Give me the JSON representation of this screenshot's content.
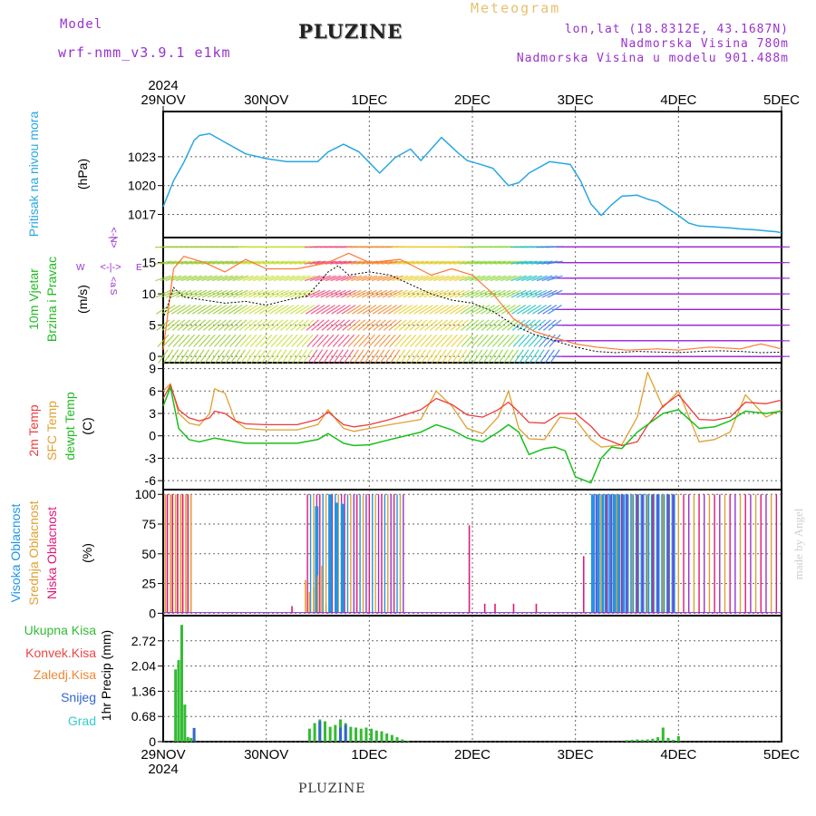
{
  "header": {
    "model_label": "Model",
    "model_name": "wrf-nmm_v3.9.1 e1km",
    "station": "PLUZINE",
    "meteogram": "Meteogram",
    "lonlat": "lon,lat (18.8312E, 43.1687N)",
    "altitude": "Nadmorska Visina 780m",
    "model_altitude": "Nadmorska Visina u modelu 901.488m",
    "watermark": "made by Angel",
    "footer_station": "PLUZINE"
  },
  "colors": {
    "pressure": "#2aa7e0",
    "temp2m": "#ee3b3b",
    "sfc": "#e0a030",
    "dew": "#18c018",
    "high": "#1e96e6",
    "mid": "#e0a030",
    "low": "#e0187a",
    "purple": "#9933cc",
    "precip": "#33bb33",
    "snow": "#3366cc",
    "conv": "#ee4444",
    "frz": "#ee8833",
    "grad": "#33cccc"
  },
  "chart_data": [
    {
      "id": "pressure",
      "type": "line",
      "title": "",
      "ylabel": "Pritisak na nivou mora",
      "unit": "(hPa)",
      "ylim": [
        1014.6,
        1027.7
      ],
      "yticks": [
        1017,
        1020,
        1023
      ],
      "x_ticks_top": [
        "29NOV",
        "30NOV",
        "1DEC",
        "2DEC",
        "3DEC",
        "4DEC",
        "5DEC"
      ],
      "x_year_top": "2024",
      "series": [
        {
          "name": "mslp",
          "x": [
            0,
            0.1,
            0.2,
            0.3,
            0.35,
            0.45,
            0.6,
            0.7,
            0.8,
            1.0,
            1.2,
            1.5,
            1.6,
            1.75,
            1.9,
            2.0,
            2.1,
            2.25,
            2.4,
            2.5,
            2.7,
            2.85,
            2.95,
            3.05,
            3.2,
            3.35,
            3.45,
            3.55,
            3.75,
            3.95,
            4.05,
            4.15,
            4.25,
            4.35,
            4.45,
            4.6,
            4.7,
            4.8,
            4.9,
            5.0,
            5.1,
            5.2,
            5.35,
            5.5,
            5.6,
            5.75,
            5.85,
            5.95,
            6.0
          ],
          "values": [
            1017.8,
            1020.5,
            1022.4,
            1024.7,
            1025.2,
            1025.4,
            1024.5,
            1023.9,
            1023.3,
            1022.8,
            1022.5,
            1022.5,
            1023.5,
            1024.3,
            1023.5,
            1022.4,
            1021.3,
            1022.9,
            1023.8,
            1022.6,
            1025.0,
            1023.5,
            1022.6,
            1022.3,
            1021.8,
            1020.0,
            1020.3,
            1021.3,
            1022.5,
            1022.2,
            1020.5,
            1018.1,
            1016.9,
            1018.0,
            1018.9,
            1019.0,
            1018.6,
            1018.3,
            1017.6,
            1016.9,
            1016.1,
            1015.8,
            1015.7,
            1015.6,
            1015.5,
            1015.4,
            1015.3,
            1015.2,
            1015.1
          ]
        }
      ]
    },
    {
      "id": "wind",
      "type": "line",
      "title": "",
      "ylabel": "10m Vjetar Brzina i Pravac",
      "ylabel_line1": "10m Vjetar",
      "ylabel_line2": "Brzina i Pravac",
      "unit": "(m/s)",
      "compass": {
        "n": "N",
        "arrow": "<-|->",
        "w": "W",
        "e": "E",
        "s": "S",
        "a_label": "a",
        "lt": "<"
      },
      "ylim": [
        -1,
        19
      ],
      "yticks": [
        0,
        5,
        10,
        15
      ],
      "series": [
        {
          "name": "speed",
          "x": [
            0,
            0.1,
            0.2,
            0.4,
            0.6,
            0.8,
            1.0,
            1.2,
            1.4,
            1.5,
            1.6,
            1.7,
            1.8,
            2.0,
            2.2,
            2.4,
            2.6,
            2.8,
            3.0,
            3.2,
            3.4,
            3.6,
            3.8,
            4.0,
            4.2,
            4.4,
            4.6,
            4.8,
            5.0,
            5.2,
            5.4,
            5.6,
            5.8,
            6.0
          ],
          "values": [
            6,
            11,
            9.5,
            9.0,
            8.5,
            8.8,
            8.2,
            9.0,
            9.7,
            11.5,
            13.5,
            14.5,
            13.0,
            13.5,
            13.0,
            11.5,
            10.0,
            9.0,
            8.5,
            7.2,
            5.0,
            3.5,
            2.5,
            1.5,
            0.8,
            0.6,
            0.8,
            0.7,
            0.6,
            0.8,
            0.9,
            0.8,
            0.6,
            0.7
          ]
        },
        {
          "name": "gust",
          "x": [
            0,
            0.1,
            0.2,
            0.4,
            0.6,
            0.8,
            1.0,
            1.3,
            1.6,
            1.8,
            2.0,
            2.3,
            2.6,
            2.8,
            3.0,
            3.2,
            3.4,
            3.6,
            3.8,
            4.0,
            4.2,
            4.5,
            4.8,
            5.0,
            5.3,
            5.6,
            5.8,
            6.0
          ],
          "values": [
            1,
            14,
            16,
            15,
            13.5,
            15.5,
            14,
            14,
            15,
            16.5,
            15,
            15.5,
            13,
            14,
            13,
            10,
            6,
            4,
            3,
            2,
            1.5,
            1.0,
            1.2,
            1.0,
            1.5,
            1.2,
            2.0,
            1.2
          ]
        }
      ]
    },
    {
      "id": "temperature",
      "type": "line",
      "title": "",
      "ylabel": "2m Temp SFC Temp dewpt Temp",
      "ylabel_2m": "2m Temp",
      "ylabel_sfc": "SFC Temp",
      "ylabel_dew": "dewpt Temp",
      "unit": "(C)",
      "ylim": [
        -7.2,
        9.8
      ],
      "yticks": [
        -6,
        -3,
        0,
        3,
        6,
        9
      ],
      "series": [
        {
          "name": "2m",
          "x": [
            0,
            0.07,
            0.15,
            0.25,
            0.35,
            0.45,
            0.5,
            0.6,
            0.7,
            0.8,
            1.0,
            1.3,
            1.5,
            1.6,
            1.75,
            1.85,
            2.0,
            2.2,
            2.5,
            2.65,
            2.8,
            2.95,
            3.1,
            3.25,
            3.35,
            3.45,
            3.55,
            3.7,
            3.85,
            4.0,
            4.15,
            4.25,
            4.45,
            4.6,
            4.7,
            4.85,
            5.0,
            5.2,
            5.35,
            5.5,
            5.65,
            5.85,
            6.0
          ],
          "values": [
            5.0,
            6.8,
            3.5,
            2.4,
            2.0,
            2.4,
            3.3,
            3.0,
            2.0,
            1.6,
            1.5,
            1.5,
            2.2,
            3.2,
            1.5,
            1.2,
            1.5,
            2.2,
            3.5,
            5.0,
            4.2,
            2.8,
            2.5,
            3.5,
            4.5,
            3.2,
            1.8,
            1.7,
            3.0,
            3.0,
            1.3,
            -0.2,
            -1.3,
            -0.8,
            1.4,
            4.0,
            5.5,
            2.2,
            2.1,
            2.5,
            4.5,
            4.3,
            4.8
          ]
        },
        {
          "name": "sfc",
          "x": [
            0,
            0.07,
            0.15,
            0.25,
            0.35,
            0.45,
            0.5,
            0.6,
            0.7,
            0.8,
            1.0,
            1.3,
            1.5,
            1.6,
            1.75,
            1.85,
            2.0,
            2.2,
            2.5,
            2.65,
            2.8,
            2.95,
            3.1,
            3.25,
            3.35,
            3.45,
            3.55,
            3.7,
            3.85,
            4.0,
            4.15,
            4.25,
            4.45,
            4.6,
            4.7,
            4.85,
            5.0,
            5.2,
            5.35,
            5.5,
            5.65,
            5.85,
            6.0
          ],
          "values": [
            6.0,
            7.0,
            3.0,
            1.7,
            1.4,
            3.0,
            6.3,
            5.7,
            2.0,
            1.0,
            0.8,
            0.8,
            1.5,
            3.5,
            1.0,
            0.6,
            1.0,
            1.5,
            2.2,
            6.0,
            4.0,
            1.0,
            0.3,
            2.5,
            6.0,
            1.0,
            -0.4,
            -0.5,
            2.5,
            2.2,
            -0.5,
            -1.5,
            -1.2,
            2.5,
            8.5,
            3.8,
            6.0,
            -0.8,
            -0.5,
            0.5,
            5.5,
            2.5,
            3.5
          ]
        },
        {
          "name": "dew",
          "x": [
            0,
            0.07,
            0.15,
            0.25,
            0.35,
            0.5,
            0.7,
            0.8,
            1.0,
            1.3,
            1.5,
            1.6,
            1.75,
            1.85,
            2.0,
            2.2,
            2.5,
            2.65,
            2.8,
            2.95,
            3.1,
            3.25,
            3.35,
            3.45,
            3.55,
            3.7,
            3.8,
            3.9,
            4.0,
            4.15,
            4.25,
            4.35,
            4.45,
            4.6,
            4.75,
            4.85,
            5.0,
            5.2,
            5.35,
            5.5,
            5.65,
            5.85,
            6.0
          ],
          "values": [
            4.0,
            6.5,
            1.0,
            -0.5,
            -0.8,
            -0.3,
            -0.8,
            -1.0,
            -1.0,
            -1.0,
            -0.5,
            0.3,
            -1.0,
            -1.3,
            -1.2,
            -0.5,
            0.5,
            1.5,
            0.8,
            -0.3,
            -0.8,
            0.5,
            1.5,
            0.5,
            -2.5,
            -1.7,
            -1.5,
            -2.0,
            -5.5,
            -6.3,
            -3.0,
            -1.5,
            -1.7,
            0.5,
            2.0,
            3.0,
            3.5,
            1.0,
            1.2,
            2.0,
            3.3,
            3.0,
            3.3
          ]
        }
      ]
    },
    {
      "id": "clouds",
      "type": "bar",
      "title": "",
      "ylabel": "Visoka Oblacnost Srednja Oblacnost Niska Oblacnost",
      "ylabel_high": "Visoka Oblacnost",
      "ylabel_mid": "Srednja Oblacnost",
      "ylabel_low": "Niska Oblacnost",
      "unit": "(%)",
      "ylim": [
        -2,
        104
      ],
      "yticks": [
        0,
        25,
        50,
        75,
        100
      ],
      "series": [
        {
          "name": "high",
          "x": [
            1.49,
            1.62,
            1.68,
            1.74,
            4.17,
            4.22,
            4.26,
            4.3,
            4.34,
            4.38,
            4.42,
            4.46,
            4.5,
            4.55,
            4.6,
            4.65,
            4.7,
            4.75,
            4.8,
            4.85,
            4.9,
            4.95
          ],
          "values": [
            90,
            100,
            93,
            92,
            100,
            100,
            100,
            100,
            100,
            100,
            100,
            100,
            100,
            100,
            100,
            100,
            100,
            100,
            100,
            100,
            100,
            100
          ]
        },
        {
          "name": "mid",
          "x": [
            0.02,
            0.07,
            0.12,
            0.17,
            0.22,
            0.27,
            1.38,
            1.42,
            1.46,
            1.5,
            1.54,
            1.58
          ],
          "values": [
            100,
            100,
            100,
            100,
            100,
            100,
            28,
            18,
            22,
            32,
            40,
            8
          ]
        },
        {
          "name": "low",
          "x": [
            0.04,
            0.09,
            0.14,
            0.19,
            0.24,
            1.25,
            2.97,
            3.12,
            3.22,
            3.4,
            3.62,
            4.08
          ],
          "values": [
            100,
            100,
            100,
            100,
            100,
            6,
            74,
            8,
            8,
            8,
            8,
            48
          ]
        }
      ],
      "band_start": 1.4,
      "band_end": 2.35,
      "band_value": 100
    },
    {
      "id": "precip",
      "type": "bar",
      "title": "",
      "ylabel": "1hr Precip (mm)",
      "legend": [
        "Ukupna Kisa",
        "Konvek.Kisa",
        "Zaledj.Kisa",
        "Snijeg",
        "Grad"
      ],
      "ylim": [
        0,
        3.4
      ],
      "yticks": [
        0,
        0.68,
        1.36,
        2.04,
        2.72
      ],
      "x_ticks_bottom": [
        "29NOV",
        "30NOV",
        "1DEC",
        "2DEC",
        "3DEC",
        "4DEC",
        "5DEC"
      ],
      "x_year_bottom": "2024",
      "series": [
        {
          "name": "total",
          "x": [
            0.12,
            0.15,
            0.18,
            0.21,
            0.24,
            0.27,
            0.3,
            1.42,
            1.47,
            1.52,
            1.57,
            1.62,
            1.67,
            1.72,
            1.77,
            1.82,
            1.87,
            1.92,
            1.97,
            2.02,
            2.07,
            2.12,
            2.17,
            2.22,
            2.27,
            2.32,
            2.37,
            4.5,
            4.55,
            4.6,
            4.65,
            4.7,
            4.75,
            4.8,
            4.85,
            4.9,
            4.95,
            5.0
          ],
          "values": [
            1.95,
            2.2,
            3.15,
            1.0,
            0.12,
            0.1,
            0.08,
            0.35,
            0.5,
            0.6,
            0.55,
            0.4,
            0.45,
            0.6,
            0.5,
            0.4,
            0.38,
            0.35,
            0.38,
            0.35,
            0.3,
            0.28,
            0.22,
            0.18,
            0.12,
            0.06,
            0.03,
            0.04,
            0.05,
            0.06,
            0.05,
            0.06,
            0.08,
            0.12,
            0.38,
            0.1,
            0.05,
            0.15
          ]
        },
        {
          "name": "snow",
          "x": [
            0.3,
            1.52,
            1.72,
            1.77
          ],
          "values": [
            0.37,
            0.55,
            0.38,
            0.45
          ]
        }
      ]
    }
  ]
}
